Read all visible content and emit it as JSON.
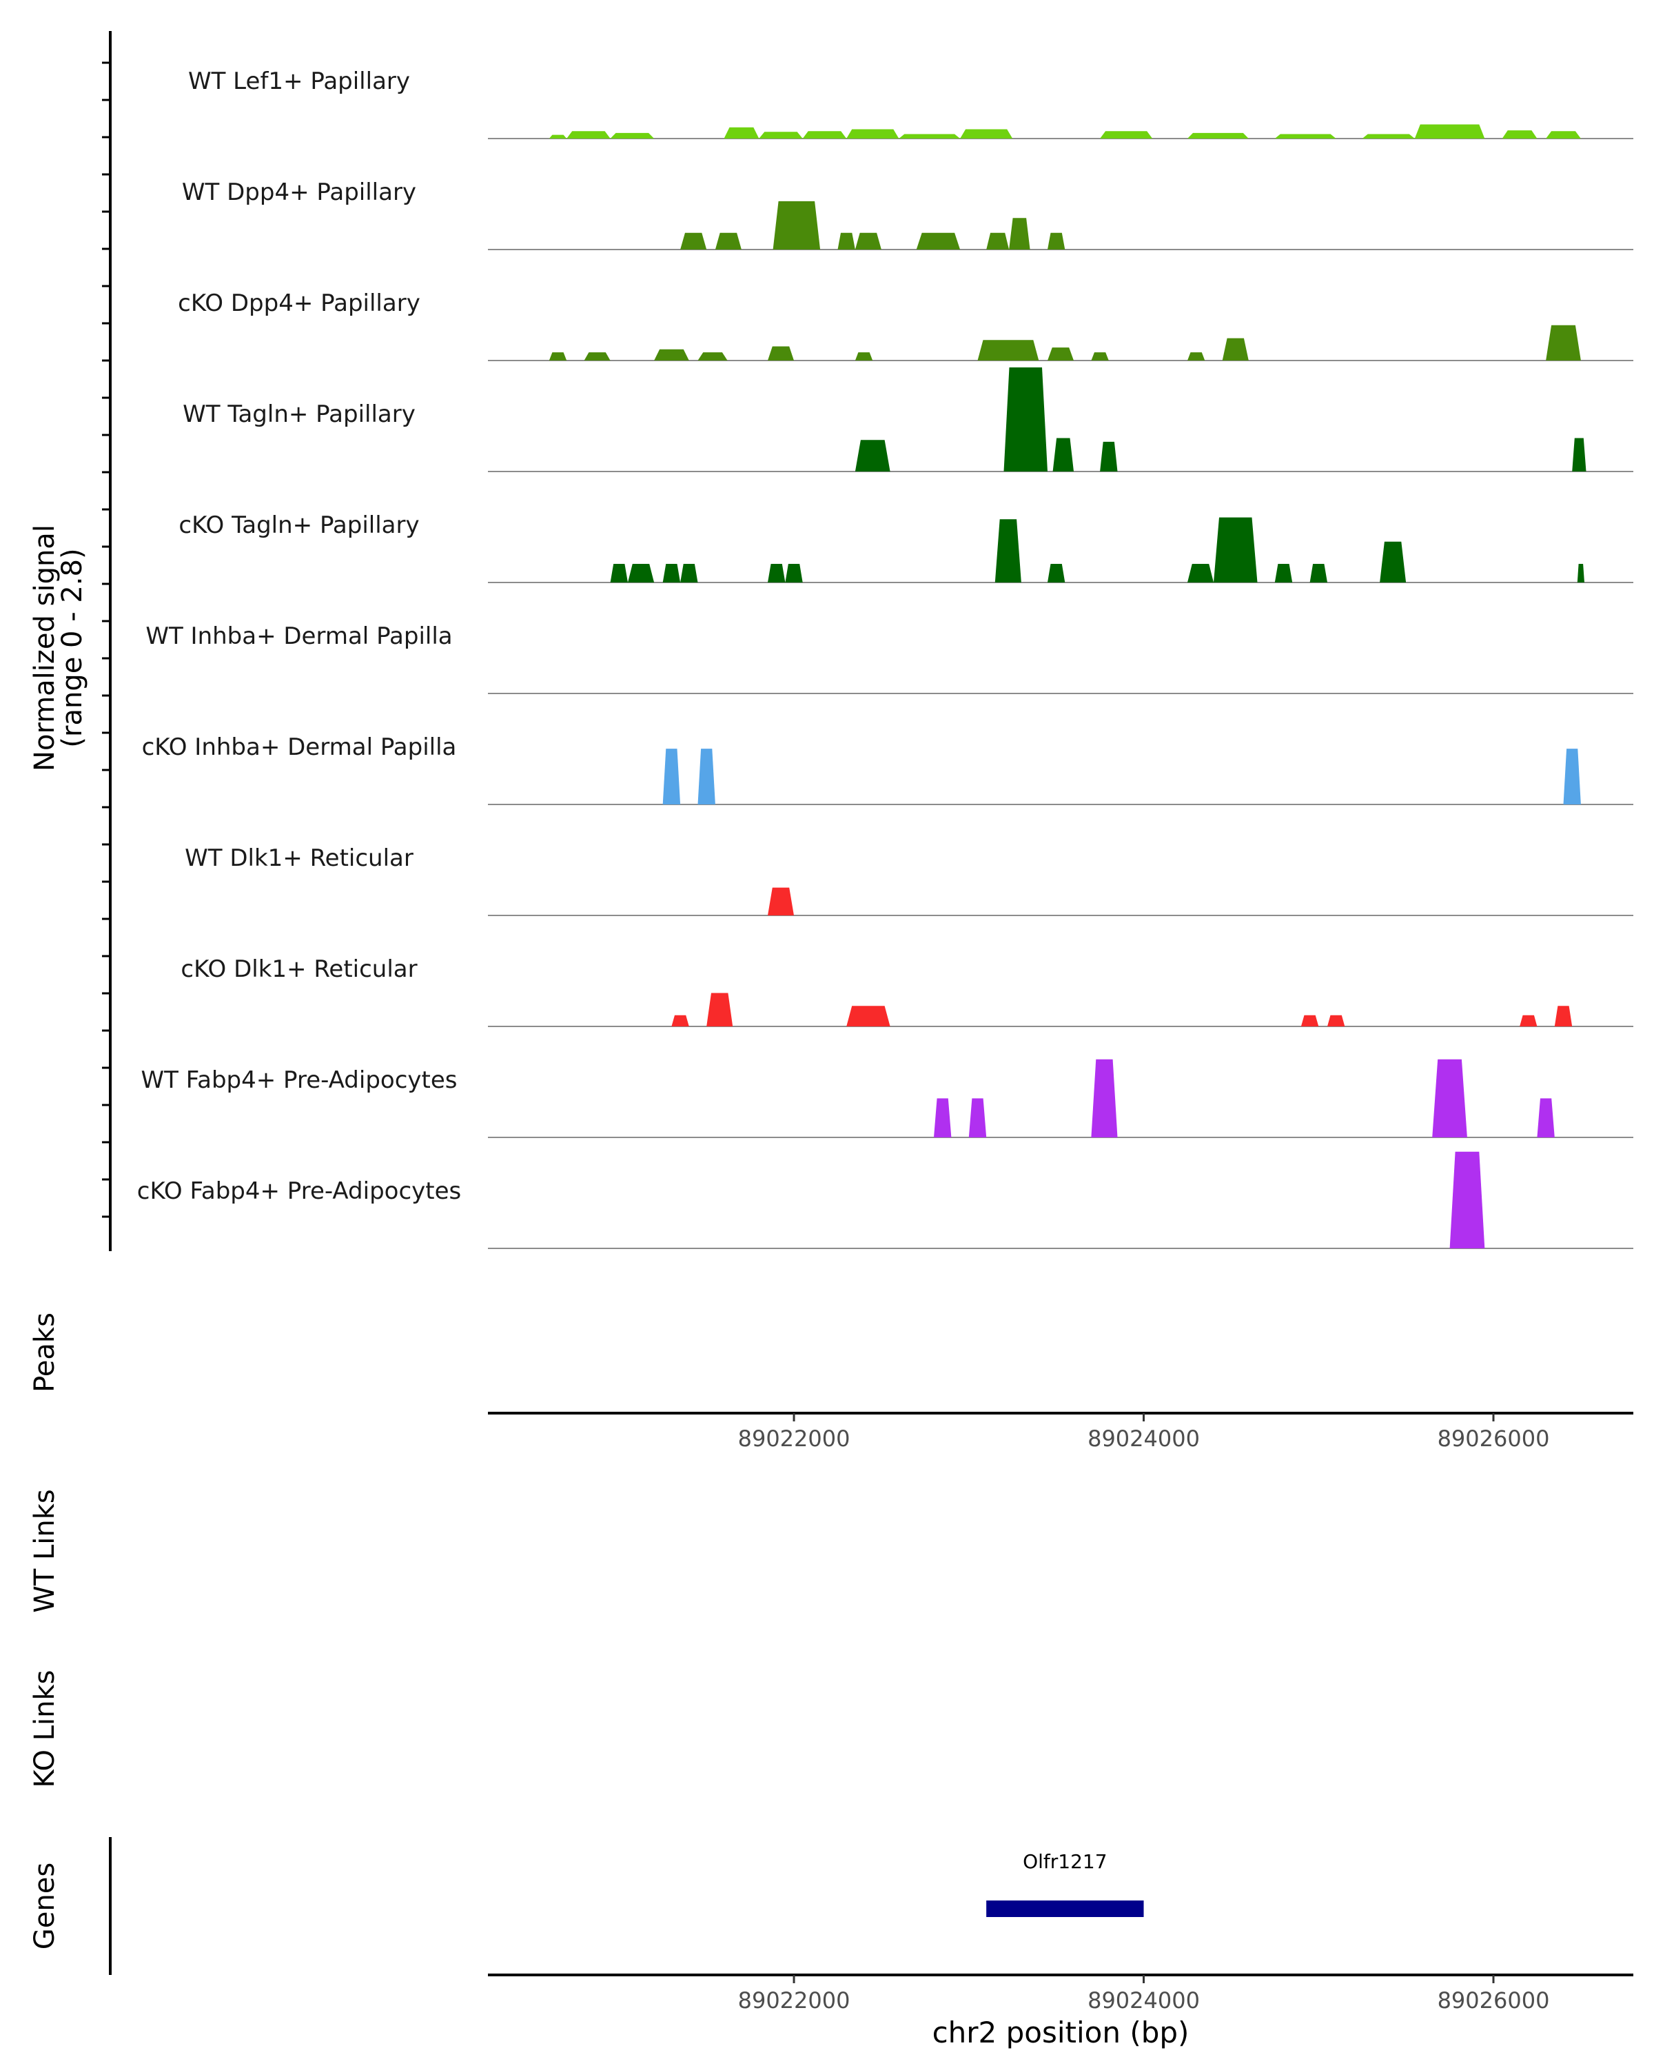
{
  "chart_data": {
    "type": "area",
    "title": "",
    "ylabel": "Normalized signal",
    "ylabel_range": "(range 0 - 2.8)",
    "ylim": [
      0,
      2.8
    ],
    "xlabel": "chr2 position (bp)",
    "xlim": [
      89020250,
      89026800
    ],
    "x_ticks": [
      89022000,
      89024000,
      89026000
    ],
    "x_tick_labels": [
      "89022000",
      "89024000",
      "89026000"
    ],
    "panel_labels": {
      "peaks": "Peaks",
      "wt_links": "WT Links",
      "ko_links": "KO Links",
      "genes": "Genes"
    },
    "genes": [
      {
        "name": "Olfr1217",
        "start": 89023100,
        "end": 89024000,
        "color": "#00008b"
      }
    ],
    "series": [
      {
        "name": "WT Lef1+ Papillary",
        "color": "#6fd20f",
        "peaks": [
          [
            89020600,
            89020700,
            0.1
          ],
          [
            89020700,
            89020950,
            0.2
          ],
          [
            89020950,
            89021200,
            0.15
          ],
          [
            89021600,
            89021800,
            0.3
          ],
          [
            89021800,
            89022050,
            0.18
          ],
          [
            89022050,
            89022300,
            0.2
          ],
          [
            89022300,
            89022600,
            0.25
          ],
          [
            89022600,
            89022950,
            0.12
          ],
          [
            89022950,
            89023250,
            0.25
          ],
          [
            89023750,
            89024050,
            0.2
          ],
          [
            89024250,
            89024600,
            0.15
          ],
          [
            89024750,
            89025100,
            0.12
          ],
          [
            89025250,
            89025550,
            0.12
          ],
          [
            89025550,
            89025950,
            0.38
          ],
          [
            89026050,
            89026250,
            0.22
          ],
          [
            89026300,
            89026500,
            0.2
          ]
        ]
      },
      {
        "name": "WT Dpp4+ Papillary",
        "color": "#4a8a0a",
        "peaks": [
          [
            89021350,
            89021500,
            0.45
          ],
          [
            89021550,
            89021700,
            0.45
          ],
          [
            89021880,
            89022150,
            1.3
          ],
          [
            89022250,
            89022350,
            0.45
          ],
          [
            89022350,
            89022500,
            0.45
          ],
          [
            89022700,
            89022950,
            0.45
          ],
          [
            89023100,
            89023230,
            0.45
          ],
          [
            89023230,
            89023350,
            0.85
          ],
          [
            89023450,
            89023550,
            0.45
          ]
        ]
      },
      {
        "name": "cKO Dpp4+ Papillary",
        "color": "#4a8a0a",
        "peaks": [
          [
            89020600,
            89020700,
            0.22
          ],
          [
            89020800,
            89020950,
            0.22
          ],
          [
            89021200,
            89021400,
            0.3
          ],
          [
            89021450,
            89021620,
            0.22
          ],
          [
            89021850,
            89022000,
            0.38
          ],
          [
            89022350,
            89022450,
            0.22
          ],
          [
            89023050,
            89023400,
            0.55
          ],
          [
            89023450,
            89023600,
            0.35
          ],
          [
            89023700,
            89023800,
            0.22
          ],
          [
            89024250,
            89024350,
            0.22
          ],
          [
            89024450,
            89024600,
            0.6
          ],
          [
            89026300,
            89026500,
            0.95
          ]
        ]
      },
      {
        "name": "WT Tagln+ Papillary",
        "color": "#006400",
        "peaks": [
          [
            89022350,
            89022550,
            0.85
          ],
          [
            89023200,
            89023450,
            2.8
          ],
          [
            89023480,
            89023600,
            0.9
          ],
          [
            89023750,
            89023850,
            0.8
          ],
          [
            89026450,
            89026530,
            0.9
          ]
        ]
      },
      {
        "name": "cKO Tagln+ Papillary",
        "color": "#006400",
        "peaks": [
          [
            89020950,
            89021050,
            0.5
          ],
          [
            89021050,
            89021200,
            0.5
          ],
          [
            89021250,
            89021350,
            0.5
          ],
          [
            89021350,
            89021450,
            0.5
          ],
          [
            89021850,
            89021950,
            0.5
          ],
          [
            89021950,
            89022050,
            0.5
          ],
          [
            89023150,
            89023300,
            1.7
          ],
          [
            89023450,
            89023550,
            0.5
          ],
          [
            89024250,
            89024400,
            0.5
          ],
          [
            89024400,
            89024650,
            1.75
          ],
          [
            89024750,
            89024850,
            0.5
          ],
          [
            89024950,
            89025050,
            0.5
          ],
          [
            89025350,
            89025500,
            1.1
          ],
          [
            89026480,
            89026520,
            0.5
          ]
        ]
      },
      {
        "name": "WT Inhba+ Dermal Papilla",
        "color": "#56a5e8",
        "peaks": []
      },
      {
        "name": "cKO Inhba+ Dermal Papilla",
        "color": "#56a5e8",
        "peaks": [
          [
            89021250,
            89021350,
            1.5
          ],
          [
            89021450,
            89021550,
            1.5
          ],
          [
            89026400,
            89026500,
            1.5
          ]
        ]
      },
      {
        "name": "WT Dlk1+ Reticular",
        "color": "#f82a2a",
        "peaks": [
          [
            89021850,
            89022000,
            0.75
          ]
        ]
      },
      {
        "name": "cKO Dlk1+ Reticular",
        "color": "#f82a2a",
        "peaks": [
          [
            89021300,
            89021400,
            0.3
          ],
          [
            89021500,
            89021650,
            0.9
          ],
          [
            89022300,
            89022550,
            0.55
          ],
          [
            89024900,
            89025000,
            0.3
          ],
          [
            89025050,
            89025150,
            0.3
          ],
          [
            89026150,
            89026250,
            0.3
          ],
          [
            89026350,
            89026450,
            0.55
          ]
        ]
      },
      {
        "name": "WT Fabp4+ Pre-Adipocytes",
        "color": "#b030f0",
        "peaks": [
          [
            89022800,
            89022900,
            1.05
          ],
          [
            89023000,
            89023100,
            1.05
          ],
          [
            89023700,
            89023850,
            2.1
          ],
          [
            89025650,
            89025850,
            2.1
          ],
          [
            89026250,
            89026350,
            1.05
          ]
        ]
      },
      {
        "name": "cKO Fabp4+ Pre-Adipocytes",
        "color": "#b030f0",
        "peaks": [
          [
            89025750,
            89025950,
            2.6
          ]
        ]
      }
    ]
  }
}
